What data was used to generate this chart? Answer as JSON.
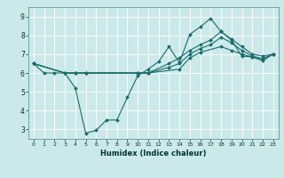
{
  "title": "",
  "xlabel": "Humidex (Indice chaleur)",
  "xlim": [
    -0.5,
    23.5
  ],
  "ylim": [
    2.5,
    9.5
  ],
  "xticks": [
    0,
    1,
    2,
    3,
    4,
    5,
    6,
    7,
    8,
    9,
    10,
    11,
    12,
    13,
    14,
    15,
    16,
    17,
    18,
    19,
    20,
    21,
    22,
    23
  ],
  "yticks": [
    3,
    4,
    5,
    6,
    7,
    8,
    9
  ],
  "bg_color": "#cce9e9",
  "line_color": "#1a6b6b",
  "lines": [
    {
      "x": [
        0,
        1,
        2,
        3,
        4,
        5,
        6,
        7,
        8,
        9,
        10,
        11,
        12,
        13,
        14,
        15,
        16,
        17,
        18,
        19,
        20,
        21,
        22,
        23
      ],
      "y": [
        6.5,
        6.0,
        6.0,
        6.0,
        5.2,
        2.8,
        2.95,
        3.5,
        3.5,
        4.7,
        5.85,
        6.2,
        6.6,
        7.4,
        6.55,
        8.05,
        8.45,
        8.9,
        8.2,
        7.75,
        6.9,
        6.85,
        6.65,
        7.0
      ]
    },
    {
      "x": [
        0,
        3,
        4,
        5,
        10,
        11,
        13,
        14,
        15,
        16,
        17,
        18,
        19,
        20,
        21,
        22,
        23
      ],
      "y": [
        6.5,
        6.0,
        6.0,
        6.0,
        6.0,
        6.0,
        6.5,
        6.8,
        7.2,
        7.5,
        7.75,
        8.2,
        7.8,
        7.4,
        7.0,
        6.9,
        7.0
      ]
    },
    {
      "x": [
        0,
        3,
        4,
        5,
        10,
        11,
        13,
        14,
        15,
        16,
        17,
        18,
        19,
        20,
        21,
        22,
        23
      ],
      "y": [
        6.5,
        6.0,
        6.0,
        6.0,
        6.0,
        6.0,
        6.3,
        6.5,
        7.0,
        7.3,
        7.5,
        7.9,
        7.6,
        7.2,
        6.9,
        6.75,
        7.0
      ]
    },
    {
      "x": [
        0,
        3,
        4,
        5,
        10,
        11,
        14,
        15,
        16,
        18,
        19,
        20,
        21,
        22,
        23
      ],
      "y": [
        6.5,
        6.0,
        6.0,
        6.0,
        6.0,
        6.0,
        6.2,
        6.8,
        7.1,
        7.4,
        7.2,
        7.0,
        6.85,
        6.75,
        7.0
      ]
    }
  ]
}
